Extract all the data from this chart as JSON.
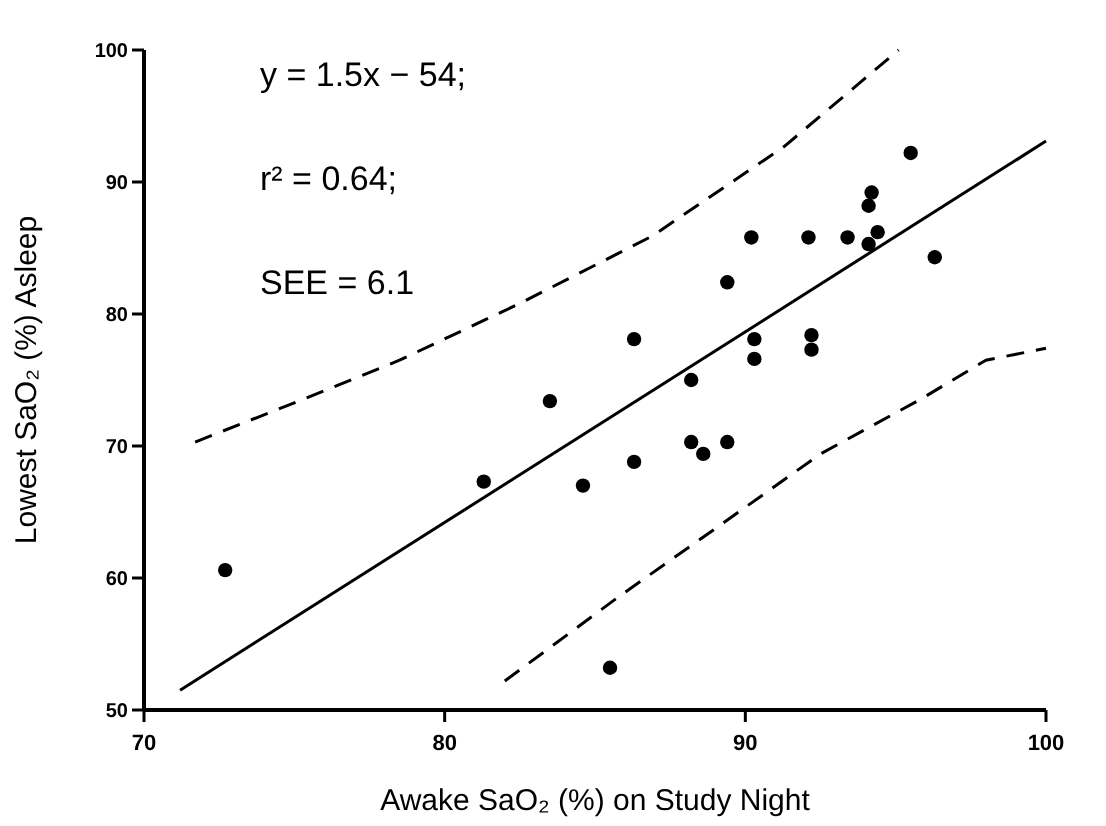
{
  "chart_data": {
    "type": "scatter",
    "xlabel": "Awake SaO₂ (%) on Study Night",
    "ylabel": "Lowest SaO₂ (%) Asleep",
    "annotations": [
      "y = 1.5x − 54;",
      "r² = 0.64;",
      "SEE = 6.1"
    ],
    "xlim": [
      70,
      100
    ],
    "ylim": [
      50,
      100
    ],
    "xticks": [
      70,
      80,
      90,
      100
    ],
    "yticks": [
      50,
      60,
      70,
      80,
      90,
      100
    ],
    "grid": false,
    "series": [
      {
        "color": "#000000",
        "marker": "circle",
        "x": [
          72.7,
          81.3,
          83.5,
          84.6,
          85.5,
          86.3,
          86.3,
          88.2,
          88.2,
          88.6,
          89.4,
          89.4,
          90.2,
          90.3,
          90.3,
          92.2,
          92.2,
          92.1,
          93.4,
          94.1,
          94.4,
          94.1,
          94.2,
          95.5,
          96.3
        ],
        "values": [
          60.6,
          67.3,
          73.4,
          67.0,
          53.2,
          68.8,
          78.1,
          75.0,
          70.3,
          69.4,
          70.3,
          82.4,
          85.8,
          78.1,
          76.6,
          78.4,
          77.3,
          85.8,
          85.8,
          85.3,
          86.2,
          88.2,
          89.2,
          92.2,
          84.3
        ]
      },
      {
        "type": "line",
        "color": "#000000",
        "line_style": "solid",
        "marker": "none",
        "x": [
          71.2,
          100
        ],
        "values": [
          51.5,
          93.1
        ]
      },
      {
        "type": "line",
        "color": "#000000",
        "line_style": "dashed",
        "marker": "none",
        "x": [
          71.7,
          74.7,
          78.5,
          82.5,
          86.9,
          91.3,
          95.1
        ],
        "values": [
          70.3,
          73.0,
          76.5,
          80.8,
          85.9,
          92.7,
          100
        ]
      },
      {
        "type": "line",
        "color": "#000000",
        "line_style": "dashed",
        "marker": "none",
        "x": [
          82.0,
          85.8,
          89.1,
          92.5,
          95.8,
          98.0,
          100
        ],
        "values": [
          52.2,
          58.6,
          63.9,
          69.4,
          73.5,
          76.5,
          77.4
        ]
      }
    ]
  }
}
